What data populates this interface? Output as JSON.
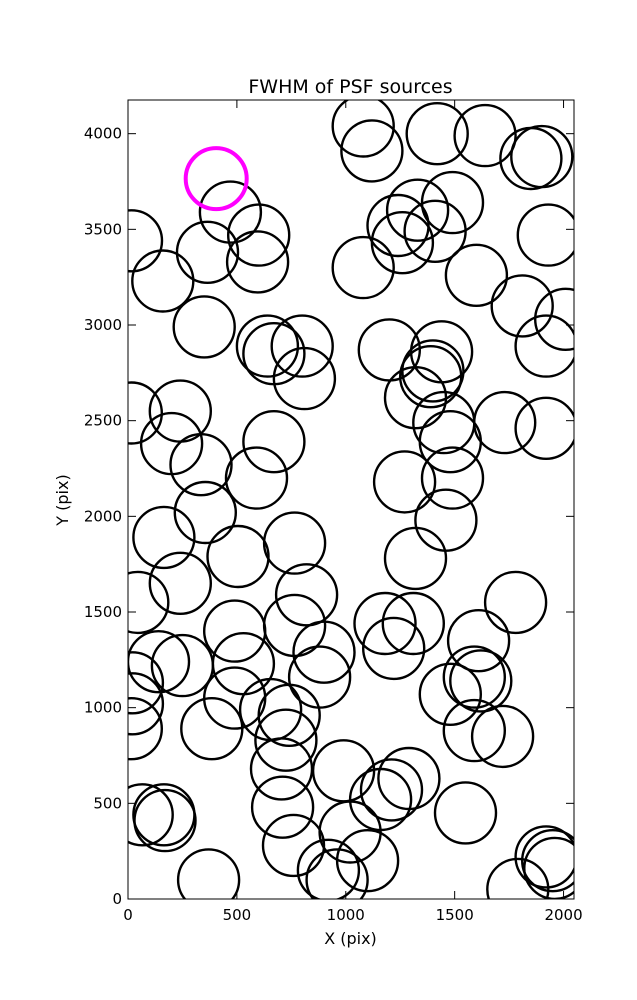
{
  "chart_data": {
    "type": "scatter",
    "title": "FWHM of PSF sources",
    "xlabel": "X (pix)",
    "ylabel": "Y (pix)",
    "xlim": [
      0,
      2048
    ],
    "ylim": [
      0,
      4176
    ],
    "xticks": [
      "0",
      "500",
      "1000",
      "1500",
      "2000"
    ],
    "yticks": [
      "0",
      "500",
      "1000",
      "1500",
      "2000",
      "2500",
      "3000",
      "3500",
      "4000"
    ],
    "xtick_values": [
      0,
      500,
      1000,
      1500,
      2000
    ],
    "ytick_values": [
      0,
      500,
      1000,
      1500,
      2000,
      2500,
      3000,
      3500,
      4000
    ],
    "grid": false,
    "marker_radius_pix": 140,
    "series": [
      {
        "color": "#000000",
        "points": [
          [
            16,
            3440
          ],
          [
            160,
            3230
          ],
          [
            365,
            3380
          ],
          [
            470,
            3590
          ],
          [
            600,
            3470
          ],
          [
            595,
            3330
          ],
          [
            350,
            2990
          ],
          [
            640,
            2890
          ],
          [
            670,
            2850
          ],
          [
            800,
            2890
          ],
          [
            810,
            2720
          ],
          [
            15,
            2540
          ],
          [
            240,
            2550
          ],
          [
            200,
            2380
          ],
          [
            335,
            2270
          ],
          [
            670,
            2390
          ],
          [
            590,
            2200
          ],
          [
            355,
            2020
          ],
          [
            165,
            1890
          ],
          [
            505,
            1790
          ],
          [
            765,
            1860
          ],
          [
            45,
            1550
          ],
          [
            240,
            1650
          ],
          [
            820,
            1590
          ],
          [
            490,
            1400
          ],
          [
            765,
            1430
          ],
          [
            530,
            1230
          ],
          [
            900,
            1290
          ],
          [
            140,
            1240
          ],
          [
            250,
            1220
          ],
          [
            20,
            1130
          ],
          [
            20,
            1020
          ],
          [
            15,
            890
          ],
          [
            490,
            1050
          ],
          [
            385,
            890
          ],
          [
            655,
            990
          ],
          [
            740,
            960
          ],
          [
            725,
            830
          ],
          [
            705,
            680
          ],
          [
            710,
            480
          ],
          [
            760,
            280
          ],
          [
            990,
            670
          ],
          [
            880,
            1160
          ],
          [
            1080,
            4040
          ],
          [
            1120,
            3910
          ],
          [
            1080,
            3300
          ],
          [
            1240,
            3520
          ],
          [
            1260,
            3430
          ],
          [
            1330,
            3600
          ],
          [
            1410,
            3490
          ],
          [
            1490,
            3640
          ],
          [
            1420,
            4000
          ],
          [
            1640,
            3990
          ],
          [
            1850,
            3870
          ],
          [
            1900,
            3880
          ],
          [
            1930,
            3470
          ],
          [
            1600,
            3260
          ],
          [
            1810,
            3100
          ],
          [
            2010,
            3030
          ],
          [
            1920,
            2890
          ],
          [
            1200,
            2870
          ],
          [
            1440,
            2860
          ],
          [
            1400,
            2760
          ],
          [
            1390,
            2730
          ],
          [
            1320,
            2620
          ],
          [
            1450,
            2490
          ],
          [
            1480,
            2390
          ],
          [
            1730,
            2490
          ],
          [
            1920,
            2460
          ],
          [
            1270,
            2180
          ],
          [
            1490,
            2200
          ],
          [
            1460,
            1980
          ],
          [
            1320,
            1780
          ],
          [
            1780,
            1550
          ],
          [
            1180,
            1440
          ],
          [
            1310,
            1440
          ],
          [
            1220,
            1310
          ],
          [
            1610,
            1350
          ],
          [
            1480,
            1070
          ],
          [
            1590,
            1160
          ],
          [
            1620,
            1140
          ],
          [
            1590,
            880
          ],
          [
            1720,
            850
          ],
          [
            1290,
            630
          ],
          [
            1210,
            570
          ],
          [
            1160,
            520
          ],
          [
            1550,
            450
          ],
          [
            1020,
            350
          ],
          [
            1100,
            200
          ],
          [
            920,
            150
          ],
          [
            960,
            100
          ],
          [
            65,
            440
          ],
          [
            165,
            440
          ],
          [
            170,
            410
          ],
          [
            370,
            100
          ],
          [
            1920,
            220
          ],
          [
            1950,
            200
          ],
          [
            1960,
            160
          ],
          [
            1790,
            50
          ]
        ]
      },
      {
        "color": "#ff00ff",
        "points": [
          [
            405,
            3765
          ]
        ]
      }
    ]
  }
}
